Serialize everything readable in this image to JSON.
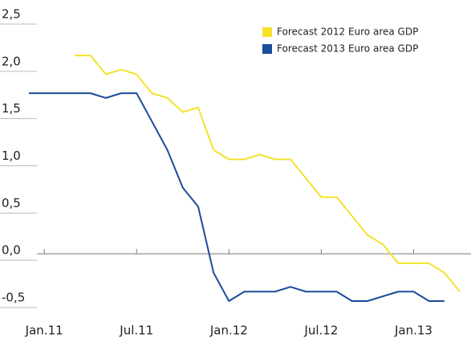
{
  "chart_data": {
    "type": "line",
    "x": [
      -1,
      0,
      1,
      2,
      3,
      4,
      5,
      6,
      7,
      8,
      9,
      10,
      11,
      12,
      13,
      14,
      15,
      16,
      17,
      18,
      19,
      20,
      21,
      22,
      23,
      24,
      25,
      26,
      27
    ],
    "xlim": [
      -1,
      27
    ],
    "xticks": [
      {
        "value": 0,
        "label": "Jan.11"
      },
      {
        "value": 6,
        "label": "Jul.11"
      },
      {
        "value": 12,
        "label": "Jan.12"
      },
      {
        "value": 18,
        "label": "Jul.12"
      },
      {
        "value": 24,
        "label": "Jan.13"
      }
    ],
    "ylim": [
      -0.5,
      2.5
    ],
    "yticks": [
      {
        "value": 2.5,
        "label": "2,5"
      },
      {
        "value": 2.0,
        "label": "2,0"
      },
      {
        "value": 1.5,
        "label": "1,5"
      },
      {
        "value": 1.0,
        "label": "1,0"
      },
      {
        "value": 0.5,
        "label": "0,5"
      },
      {
        "value": 0.0,
        "label": "0,0"
      },
      {
        "value": -0.5,
        "label": "-0,5"
      }
    ],
    "legend": "upper right",
    "series": [
      {
        "name": "Forecast 2012 Euro area GDP",
        "color": "#f5e22a",
        "values": [
          null,
          null,
          null,
          2.1,
          2.1,
          1.9,
          1.95,
          1.9,
          1.7,
          1.65,
          1.5,
          1.55,
          1.1,
          1.0,
          1.0,
          1.05,
          1.0,
          1.0,
          0.8,
          0.6,
          0.6,
          0.4,
          0.2,
          0.1,
          -0.1,
          -0.1,
          -0.1,
          -0.2,
          -0.4
        ]
      },
      {
        "name": "Forecast 2013 Euro area GDP",
        "color": "#1b4b9b",
        "values": [
          1.7,
          1.7,
          1.7,
          1.7,
          1.7,
          1.65,
          1.7,
          1.7,
          1.4,
          1.1,
          0.7,
          0.5,
          -0.2,
          -0.5,
          -0.4,
          -0.4,
          -0.4,
          -0.35,
          -0.4,
          -0.4,
          -0.4,
          -0.5,
          -0.5,
          -0.45,
          -0.4,
          -0.4,
          -0.5,
          -0.5,
          null
        ]
      }
    ]
  }
}
